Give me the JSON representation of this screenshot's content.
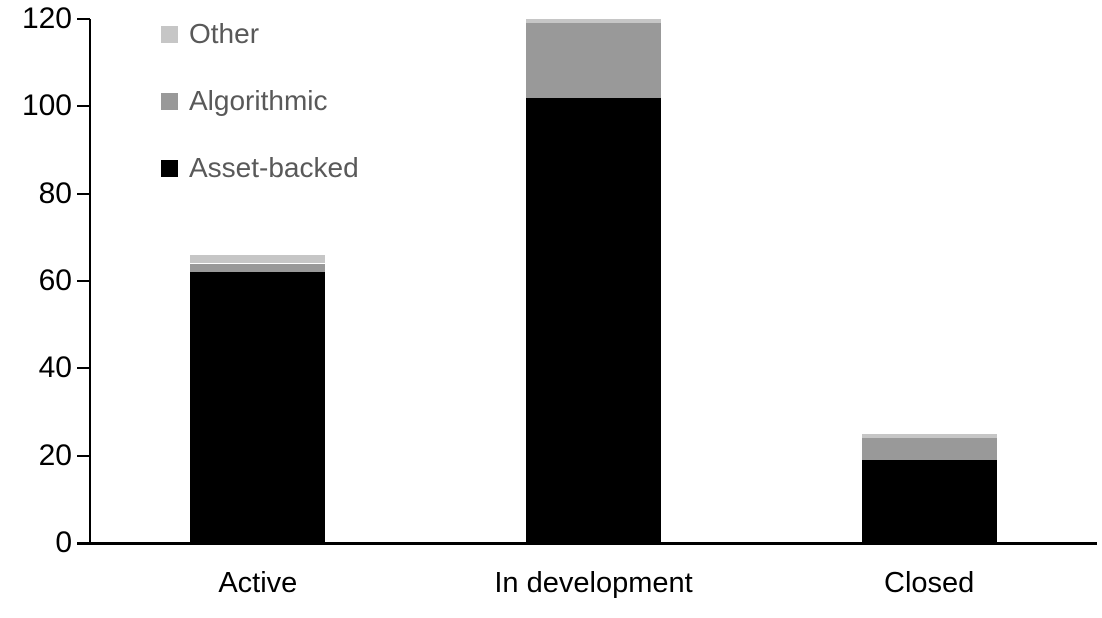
{
  "chart_data": {
    "type": "bar",
    "stacked": true,
    "title": "",
    "xlabel": "",
    "ylabel": "",
    "categories": [
      "Active",
      "In development",
      "Closed"
    ],
    "series": [
      {
        "name": "Asset-backed",
        "color": "#000000",
        "values": [
          62,
          102,
          19
        ]
      },
      {
        "name": "Algorithmic",
        "color": "#999999",
        "values": [
          2,
          17,
          5
        ]
      },
      {
        "name": "Other",
        "color": "#c6c6c6",
        "values": [
          2,
          1,
          1
        ]
      }
    ],
    "totals": [
      66,
      120,
      25
    ],
    "y_ticks": [
      0,
      20,
      40,
      60,
      80,
      100,
      120
    ],
    "ylim": [
      0,
      120
    ],
    "grid": false,
    "legend_position": "top-left",
    "legend_order": [
      "Other",
      "Algorithmic",
      "Asset-backed"
    ],
    "colors": {
      "axis": "#000000",
      "tick_label_text": "#000000",
      "category_label_text": "#000000",
      "legend_text": "#595959",
      "background": "#ffffff"
    }
  }
}
